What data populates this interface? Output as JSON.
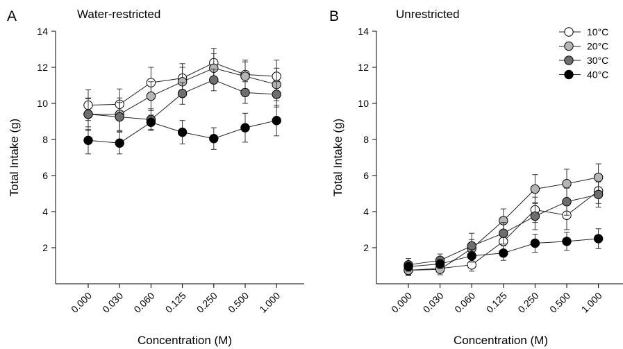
{
  "chart_data": [
    {
      "type": "line",
      "panel_letter": "A",
      "title": "Water-restricted",
      "xlabel": "Concentration (M)",
      "ylabel": "Total Intake (g)",
      "categories": [
        "0.000",
        "0.030",
        "0.060",
        "0.125",
        "0.250",
        "0.500",
        "1.000"
      ],
      "ylim": [
        0,
        14
      ],
      "yticks": [
        2,
        4,
        6,
        8,
        10,
        12,
        14
      ],
      "grid": false,
      "series": [
        {
          "name": "10°C",
          "color": "#ffffff",
          "values": [
            9.9,
            9.95,
            11.15,
            11.4,
            12.25,
            11.6,
            11.5
          ],
          "errors": [
            0.85,
            0.85,
            0.85,
            0.8,
            0.8,
            0.8,
            0.9
          ]
        },
        {
          "name": "20°C",
          "color": "#b5b5b5",
          "values": [
            9.4,
            9.4,
            10.4,
            11.2,
            11.95,
            11.5,
            11.05
          ],
          "errors": [
            0.9,
            0.9,
            0.8,
            0.8,
            0.8,
            0.8,
            0.9
          ]
        },
        {
          "name": "30°C",
          "color": "#6e6e6e",
          "values": [
            9.4,
            9.25,
            9.1,
            10.55,
            11.3,
            10.6,
            10.5
          ],
          "errors": [
            0.85,
            0.8,
            0.6,
            0.6,
            0.6,
            0.6,
            0.7
          ]
        },
        {
          "name": "40°C",
          "color": "#000000",
          "values": [
            7.95,
            7.8,
            8.95,
            8.4,
            8.05,
            8.65,
            9.05
          ],
          "errors": [
            0.75,
            0.6,
            0.4,
            0.65,
            0.6,
            0.8,
            0.85
          ]
        }
      ]
    },
    {
      "type": "line",
      "panel_letter": "B",
      "title": "Unrestricted",
      "xlabel": "Concentration (M)",
      "ylabel": "Total Intake (g)",
      "categories": [
        "0.000",
        "0.030",
        "0.060",
        "0.125",
        "0.250",
        "0.500",
        "1.000"
      ],
      "ylim": [
        0,
        14
      ],
      "yticks": [
        2,
        4,
        6,
        8,
        10,
        12,
        14
      ],
      "grid": false,
      "legend_position": "top-right",
      "series": [
        {
          "name": "10°C",
          "color": "#ffffff",
          "values": [
            0.75,
            0.85,
            1.05,
            2.35,
            4.1,
            3.8,
            5.15
          ],
          "errors": [
            0.25,
            0.25,
            0.35,
            0.6,
            0.7,
            0.8,
            0.7
          ]
        },
        {
          "name": "20°C",
          "color": "#b5b5b5",
          "values": [
            0.75,
            0.8,
            1.95,
            3.5,
            5.25,
            5.55,
            5.9
          ],
          "errors": [
            0.3,
            0.3,
            0.5,
            0.65,
            0.8,
            0.8,
            0.75
          ]
        },
        {
          "name": "30°C",
          "color": "#6e6e6e",
          "values": [
            1.05,
            1.3,
            2.1,
            2.8,
            3.75,
            4.55,
            4.95
          ],
          "errors": [
            0.35,
            0.35,
            0.7,
            0.6,
            0.75,
            0.75,
            0.7
          ]
        },
        {
          "name": "40°C",
          "color": "#000000",
          "values": [
            0.95,
            1.1,
            1.55,
            1.7,
            2.25,
            2.35,
            2.5
          ],
          "errors": [
            0.25,
            0.25,
            0.35,
            0.4,
            0.5,
            0.5,
            0.55
          ]
        }
      ]
    }
  ]
}
